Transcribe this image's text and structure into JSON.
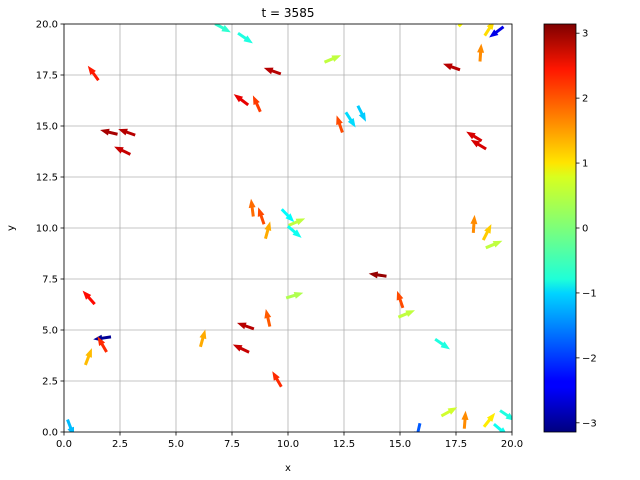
{
  "chart_data": {
    "type": "quiver",
    "title": "t = 3585",
    "xlabel": "x",
    "ylabel": "y",
    "xlim": [
      0,
      20
    ],
    "ylim": [
      0,
      20
    ],
    "grid": true,
    "x_ticks": [
      "0.0",
      "2.5",
      "5.0",
      "7.5",
      "10.0",
      "12.5",
      "15.0",
      "17.5",
      "20.0"
    ],
    "y_ticks": [
      "0.0",
      "2.5",
      "5.0",
      "7.5",
      "10.0",
      "12.5",
      "15.0",
      "17.5",
      "20.0"
    ],
    "colorbar": {
      "colormap": "jet",
      "range": [
        -3.14159,
        3.14159
      ],
      "ticks": [
        "3",
        "2",
        "1",
        "0",
        "−1",
        "−2",
        "−3"
      ]
    },
    "arrows": [
      {
        "x": 8.1,
        "y": 19.3,
        "angle": -0.6
      },
      {
        "x": 7.1,
        "y": 19.8,
        "angle": -0.5
      },
      {
        "x": 12.0,
        "y": 18.3,
        "angle": 0.4
      },
      {
        "x": 1.3,
        "y": 17.6,
        "angle": 2.2
      },
      {
        "x": 9.3,
        "y": 17.7,
        "angle": 2.8
      },
      {
        "x": 17.3,
        "y": 17.9,
        "angle": 2.8
      },
      {
        "x": 18.6,
        "y": 18.6,
        "angle": 1.5
      },
      {
        "x": 19.3,
        "y": 19.6,
        "angle": -2.5
      },
      {
        "x": 19.0,
        "y": 19.8,
        "angle": 1.0
      },
      {
        "x": 17.9,
        "y": 20.2,
        "angle": 0.8
      },
      {
        "x": 7.9,
        "y": 16.3,
        "angle": 2.5
      },
      {
        "x": 8.6,
        "y": 16.1,
        "angle": 2.0
      },
      {
        "x": 12.3,
        "y": 15.1,
        "angle": 1.9
      },
      {
        "x": 12.8,
        "y": 15.3,
        "angle": -1.0
      },
      {
        "x": 13.3,
        "y": 15.6,
        "angle": -1.1
      },
      {
        "x": 2.0,
        "y": 14.7,
        "angle": 2.9
      },
      {
        "x": 2.8,
        "y": 14.7,
        "angle": 2.8
      },
      {
        "x": 2.6,
        "y": 13.8,
        "angle": 2.7
      },
      {
        "x": 18.3,
        "y": 14.5,
        "angle": 2.6
      },
      {
        "x": 18.5,
        "y": 14.1,
        "angle": 2.6
      },
      {
        "x": 8.4,
        "y": 11.0,
        "angle": 1.7
      },
      {
        "x": 8.8,
        "y": 10.6,
        "angle": 1.9
      },
      {
        "x": 9.1,
        "y": 9.9,
        "angle": 1.3
      },
      {
        "x": 10.0,
        "y": 10.6,
        "angle": -0.8
      },
      {
        "x": 10.4,
        "y": 10.3,
        "angle": 0.4
      },
      {
        "x": 10.3,
        "y": 9.8,
        "angle": -0.7
      },
      {
        "x": 18.3,
        "y": 10.2,
        "angle": 1.5
      },
      {
        "x": 18.9,
        "y": 9.8,
        "angle": 1.1
      },
      {
        "x": 19.2,
        "y": 9.2,
        "angle": 0.4
      },
      {
        "x": 1.1,
        "y": 6.6,
        "angle": 2.3
      },
      {
        "x": 14.0,
        "y": 7.7,
        "angle": 3.0
      },
      {
        "x": 15.0,
        "y": 6.5,
        "angle": 1.9
      },
      {
        "x": 15.3,
        "y": 5.8,
        "angle": 0.4
      },
      {
        "x": 10.3,
        "y": 6.7,
        "angle": 0.3
      },
      {
        "x": 9.1,
        "y": 5.6,
        "angle": 1.8
      },
      {
        "x": 8.1,
        "y": 5.2,
        "angle": 2.8
      },
      {
        "x": 1.7,
        "y": 4.6,
        "angle": -3.0
      },
      {
        "x": 1.7,
        "y": 4.3,
        "angle": 2.1
      },
      {
        "x": 1.1,
        "y": 3.7,
        "angle": 1.2
      },
      {
        "x": 6.2,
        "y": 4.6,
        "angle": 1.3
      },
      {
        "x": 7.9,
        "y": 4.1,
        "angle": 2.7
      },
      {
        "x": 16.9,
        "y": 4.3,
        "angle": -0.6
      },
      {
        "x": 9.5,
        "y": 2.6,
        "angle": 2.1
      },
      {
        "x": 17.2,
        "y": 1.0,
        "angle": 0.5
      },
      {
        "x": 17.9,
        "y": 0.6,
        "angle": 1.5
      },
      {
        "x": 19.0,
        "y": 0.6,
        "angle": 0.9
      },
      {
        "x": 19.8,
        "y": 0.8,
        "angle": -0.6
      },
      {
        "x": 19.5,
        "y": 0.1,
        "angle": -0.7
      },
      {
        "x": 0.3,
        "y": 0.2,
        "angle": -1.2
      },
      {
        "x": 15.8,
        "y": 0.0,
        "angle": -1.8
      }
    ]
  }
}
